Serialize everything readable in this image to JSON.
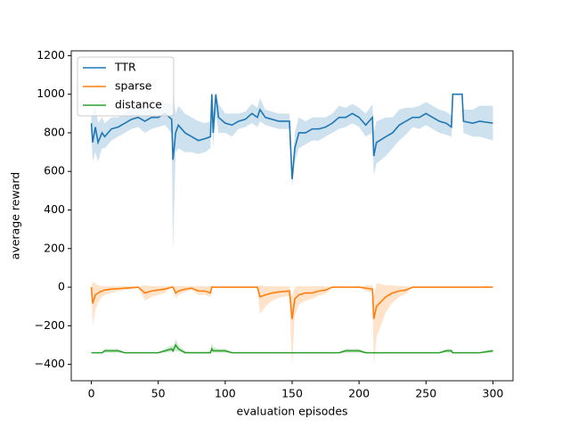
{
  "chart_data": {
    "type": "line",
    "xlabel": "evaluation episodes",
    "ylabel": "average reward",
    "x": [
      0,
      1,
      3,
      5,
      8,
      10,
      15,
      20,
      25,
      30,
      35,
      40,
      45,
      50,
      55,
      60,
      61,
      63,
      65,
      70,
      75,
      80,
      85,
      89,
      90,
      91,
      93,
      95,
      100,
      105,
      110,
      115,
      120,
      124,
      126,
      130,
      135,
      140,
      148,
      150,
      152,
      155,
      160,
      165,
      170,
      175,
      180,
      185,
      190,
      195,
      200,
      205,
      210,
      211,
      213,
      220,
      225,
      230,
      235,
      240,
      245,
      250,
      255,
      260,
      265,
      269,
      270,
      277,
      278,
      285,
      290,
      300
    ],
    "series": [
      {
        "name": "TTR",
        "color": "#1f77b4",
        "values": [
          850,
          750,
          830,
          750,
          800,
          780,
          820,
          830,
          850,
          870,
          880,
          860,
          880,
          880,
          900,
          870,
          660,
          800,
          840,
          800,
          780,
          760,
          770,
          780,
          1000,
          800,
          1000,
          880,
          850,
          840,
          860,
          870,
          900,
          880,
          920,
          880,
          870,
          860,
          860,
          560,
          720,
          800,
          800,
          820,
          820,
          830,
          850,
          880,
          880,
          900,
          880,
          840,
          880,
          680,
          750,
          780,
          800,
          840,
          860,
          880,
          880,
          900,
          880,
          860,
          850,
          830,
          1000,
          1000,
          860,
          850,
          860,
          850
        ],
        "lower": [
          800,
          650,
          700,
          650,
          720,
          720,
          760,
          780,
          800,
          820,
          830,
          800,
          820,
          830,
          840,
          800,
          190,
          700,
          720,
          700,
          700,
          690,
          700,
          720,
          1000,
          720,
          900,
          800,
          800,
          780,
          820,
          830,
          850,
          830,
          860,
          840,
          830,
          820,
          820,
          520,
          650,
          720,
          740,
          760,
          760,
          780,
          800,
          820,
          830,
          850,
          830,
          780,
          800,
          580,
          640,
          680,
          720,
          760,
          790,
          830,
          820,
          840,
          820,
          800,
          790,
          780,
          1000,
          1000,
          800,
          780,
          780,
          760
        ],
        "upper": [
          900,
          900,
          950,
          850,
          880,
          850,
          880,
          880,
          900,
          920,
          930,
          920,
          930,
          930,
          960,
          950,
          1000,
          900,
          940,
          900,
          880,
          860,
          850,
          860,
          1000,
          900,
          1000,
          950,
          900,
          900,
          900,
          910,
          950,
          930,
          980,
          920,
          910,
          900,
          900,
          600,
          800,
          880,
          860,
          880,
          880,
          880,
          900,
          940,
          930,
          950,
          930,
          900,
          950,
          800,
          860,
          880,
          880,
          920,
          930,
          930,
          940,
          960,
          940,
          920,
          910,
          890,
          1000,
          1000,
          920,
          920,
          940,
          940
        ]
      },
      {
        "name": "sparse",
        "color": "#ff7f0e",
        "values": [
          0,
          -85,
          -40,
          -30,
          -20,
          -15,
          -10,
          -8,
          -5,
          -3,
          0,
          -30,
          -20,
          -15,
          -10,
          0,
          0,
          -30,
          -20,
          -10,
          -5,
          -20,
          -20,
          -30,
          0,
          0,
          0,
          0,
          0,
          0,
          0,
          0,
          0,
          0,
          -50,
          -40,
          -30,
          -25,
          -20,
          -165,
          -60,
          -40,
          -30,
          -30,
          -20,
          -15,
          0,
          0,
          0,
          0,
          0,
          -5,
          -10,
          -165,
          -100,
          -50,
          -30,
          -20,
          -15,
          0,
          0,
          0,
          0,
          0,
          0,
          0,
          0,
          0,
          0,
          0,
          0,
          0
        ],
        "lower": [
          0,
          -200,
          -120,
          -80,
          -50,
          -40,
          -30,
          -20,
          -15,
          -10,
          0,
          -70,
          -50,
          -40,
          -30,
          0,
          0,
          -60,
          -40,
          -25,
          -15,
          -40,
          -40,
          -50,
          0,
          0,
          0,
          0,
          0,
          0,
          0,
          0,
          0,
          0,
          -140,
          -100,
          -70,
          -55,
          -45,
          -410,
          -150,
          -90,
          -70,
          -60,
          -45,
          -35,
          0,
          0,
          0,
          0,
          0,
          -20,
          -30,
          -410,
          -260,
          -130,
          -80,
          -50,
          -35,
          0,
          0,
          0,
          0,
          0,
          0,
          0,
          0,
          0,
          0,
          0,
          0,
          0
        ],
        "upper": [
          0,
          30,
          20,
          10,
          5,
          5,
          5,
          5,
          5,
          5,
          0,
          10,
          5,
          5,
          5,
          0,
          0,
          5,
          5,
          5,
          5,
          5,
          5,
          5,
          0,
          0,
          0,
          0,
          0,
          0,
          0,
          0,
          0,
          0,
          10,
          5,
          5,
          5,
          5,
          -50,
          0,
          5,
          5,
          5,
          5,
          5,
          0,
          0,
          0,
          0,
          0,
          10,
          10,
          -50,
          20,
          10,
          10,
          5,
          5,
          0,
          0,
          0,
          0,
          0,
          0,
          0,
          0,
          0,
          0,
          0,
          0,
          0
        ]
      },
      {
        "name": "distance",
        "color": "#2ca02c",
        "values": [
          -340,
          -340,
          -340,
          -340,
          -340,
          -330,
          -330,
          -330,
          -340,
          -340,
          -340,
          -340,
          -340,
          -340,
          -330,
          -320,
          -330,
          -300,
          -320,
          -340,
          -340,
          -340,
          -340,
          -340,
          -320,
          -330,
          -330,
          -330,
          -330,
          -340,
          -340,
          -340,
          -340,
          -340,
          -340,
          -340,
          -340,
          -340,
          -340,
          -340,
          -340,
          -340,
          -340,
          -340,
          -340,
          -340,
          -340,
          -340,
          -330,
          -330,
          -330,
          -340,
          -340,
          -340,
          -340,
          -340,
          -340,
          -340,
          -340,
          -340,
          -340,
          -340,
          -340,
          -340,
          -330,
          -330,
          -340,
          -340,
          -340,
          -340,
          -340,
          -330
        ],
        "lower": [
          -340,
          -340,
          -340,
          -340,
          -340,
          -340,
          -340,
          -340,
          -340,
          -340,
          -340,
          -340,
          -340,
          -340,
          -340,
          -335,
          -340,
          -330,
          -335,
          -340,
          -340,
          -340,
          -340,
          -340,
          -335,
          -340,
          -340,
          -340,
          -340,
          -340,
          -340,
          -340,
          -340,
          -340,
          -340,
          -340,
          -340,
          -340,
          -340,
          -340,
          -340,
          -340,
          -340,
          -340,
          -340,
          -340,
          -340,
          -340,
          -340,
          -340,
          -340,
          -340,
          -340,
          -340,
          -340,
          -340,
          -340,
          -340,
          -340,
          -340,
          -340,
          -340,
          -340,
          -340,
          -340,
          -340,
          -340,
          -340,
          -340,
          -340,
          -340,
          -340
        ],
        "upper": [
          -340,
          -340,
          -340,
          -340,
          -340,
          -320,
          -320,
          -320,
          -340,
          -340,
          -340,
          -340,
          -340,
          -340,
          -320,
          -300,
          -310,
          -270,
          -300,
          -330,
          -335,
          -335,
          -335,
          -330,
          -290,
          -310,
          -315,
          -320,
          -320,
          -335,
          -340,
          -340,
          -340,
          -340,
          -340,
          -340,
          -340,
          -340,
          -340,
          -340,
          -340,
          -340,
          -340,
          -340,
          -340,
          -340,
          -340,
          -340,
          -320,
          -320,
          -320,
          -335,
          -340,
          -340,
          -340,
          -340,
          -340,
          -340,
          -340,
          -340,
          -340,
          -340,
          -340,
          -340,
          -320,
          -320,
          -340,
          -340,
          -340,
          -340,
          -340,
          -320
        ]
      }
    ],
    "xlim": [
      -15,
      315
    ],
    "xticks": [
      0,
      50,
      100,
      150,
      200,
      250,
      300
    ],
    "ylim": [
      -485,
      1225
    ],
    "yticks": [
      {
        "value": -400,
        "label": "−400"
      },
      {
        "value": -200,
        "label": "−200"
      },
      0,
      200,
      400,
      600,
      800,
      1000,
      1200
    ],
    "legend": "upper left"
  }
}
